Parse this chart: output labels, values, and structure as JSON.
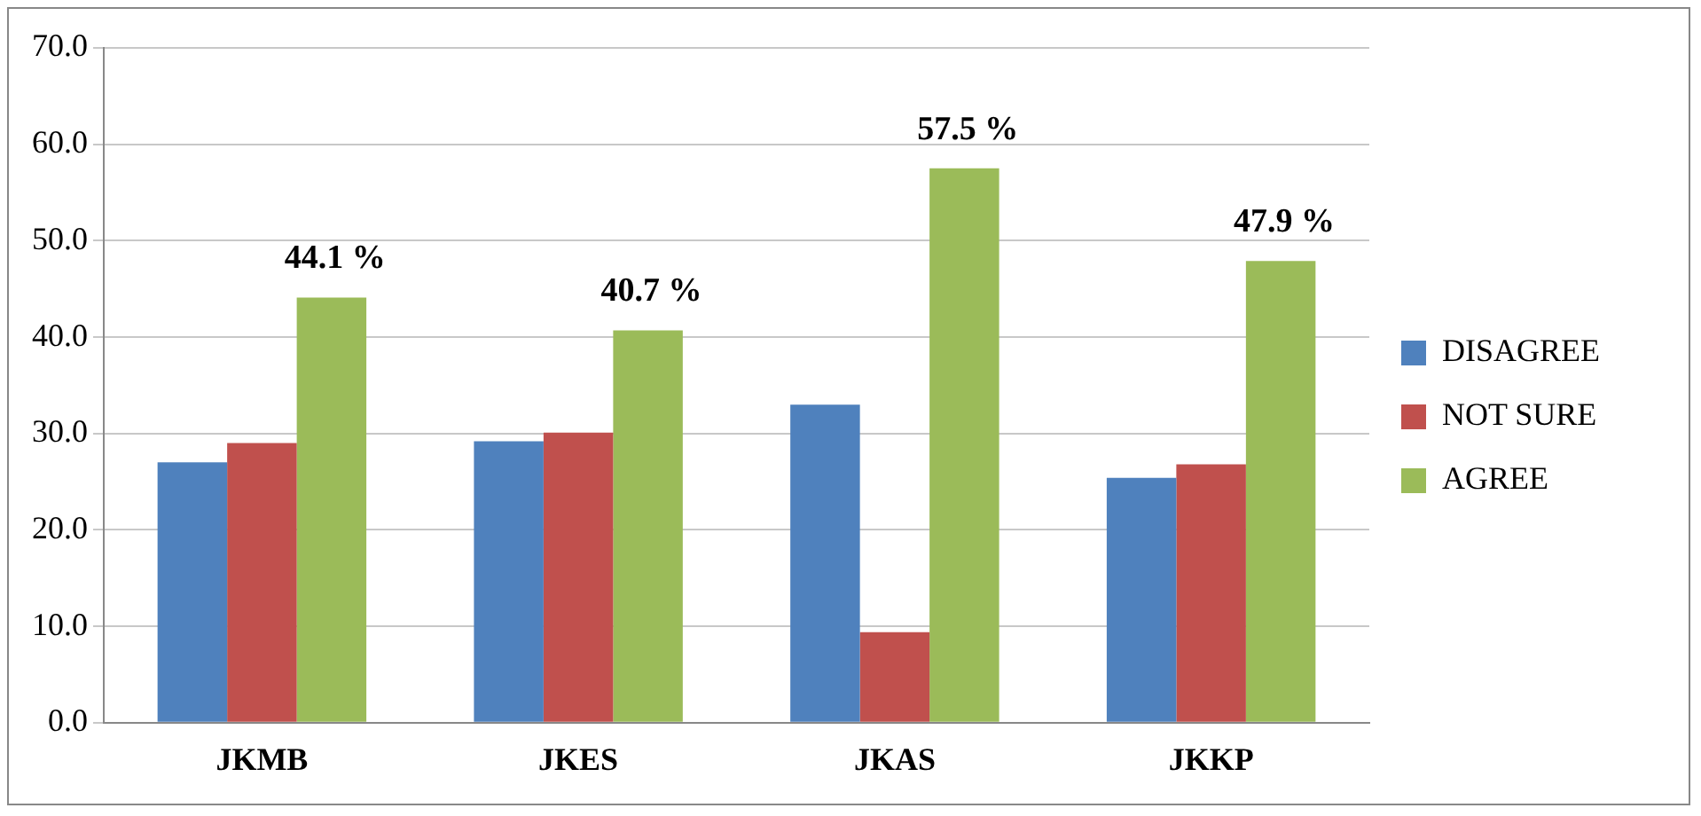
{
  "chart_data": {
    "type": "bar",
    "categories": [
      "JKMB",
      "JKES",
      "JKAS",
      "JKKP"
    ],
    "series": [
      {
        "name": "DISAGREE",
        "color": "#4f81bd",
        "values": [
          27.0,
          29.2,
          33.0,
          25.4
        ]
      },
      {
        "name": "NOT SURE",
        "color": "#c0504d",
        "values": [
          29.0,
          30.1,
          9.4,
          26.8
        ]
      },
      {
        "name": "AGREE",
        "color": "#9bbb59",
        "values": [
          44.1,
          40.7,
          57.5,
          47.9
        ],
        "value_labels": [
          "44.1 %",
          "40.7 %",
          "57.5 %",
          "47.9 %"
        ]
      }
    ],
    "ylim": [
      0,
      70
    ],
    "yticks": [
      {
        "value": 0,
        "label": "0.0"
      },
      {
        "value": 10,
        "label": "10.0"
      },
      {
        "value": 20,
        "label": "20.0"
      },
      {
        "value": 30,
        "label": "30.0"
      },
      {
        "value": 40,
        "label": "40.0"
      },
      {
        "value": 50,
        "label": "50.0"
      },
      {
        "value": 60,
        "label": "60.0"
      },
      {
        "value": 70,
        "label": "70.0"
      }
    ],
    "grid": "y",
    "legend": "right"
  }
}
